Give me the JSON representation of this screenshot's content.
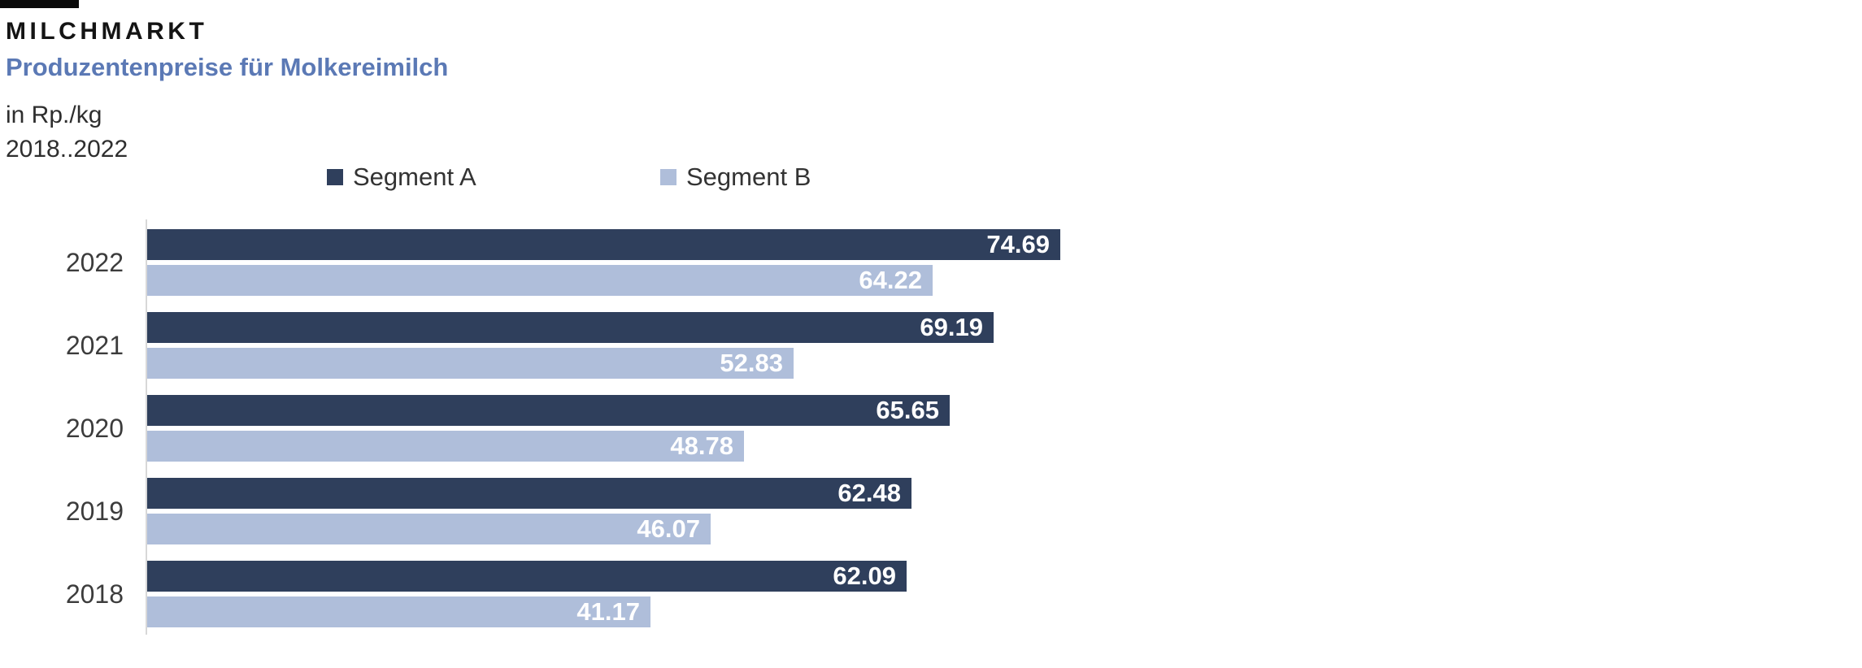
{
  "header": {
    "kicker": "MILCHMARKT",
    "title": "Produzentenpreise für Molkereimilch",
    "unit_line": "in Rp./kg",
    "range_line": "2018..2022"
  },
  "colors": {
    "segment_a": "#2F3F5C",
    "segment_b": "#AFBEDA",
    "title_blue": "#5B79B5",
    "accent_black": "#0A0A0A",
    "text_gray": "#2E2E2E",
    "axis_line": "#D8D8D8",
    "value_label": "#FFFFFF"
  },
  "legend": {
    "items": [
      {
        "label": "Segment A",
        "color": "#2F3F5C"
      },
      {
        "label": "Segment B",
        "color": "#AFBEDA"
      }
    ],
    "position": "top"
  },
  "chart_data": {
    "type": "bar",
    "orientation": "horizontal",
    "title": "Produzentenpreise für Molkereimilch",
    "unit": "Rp./kg",
    "categories": [
      "2022",
      "2021",
      "2020",
      "2019",
      "2018"
    ],
    "series": [
      {
        "name": "Segment A",
        "color": "#2F3F5C",
        "values": [
          74.69,
          69.19,
          65.65,
          62.48,
          62.09
        ]
      },
      {
        "name": "Segment B",
        "color": "#AFBEDA",
        "values": [
          64.22,
          52.83,
          48.78,
          46.07,
          41.17
        ]
      }
    ],
    "value_labels": "inside-end",
    "value_decimals": 2,
    "grid": false,
    "legend_position": "top"
  }
}
